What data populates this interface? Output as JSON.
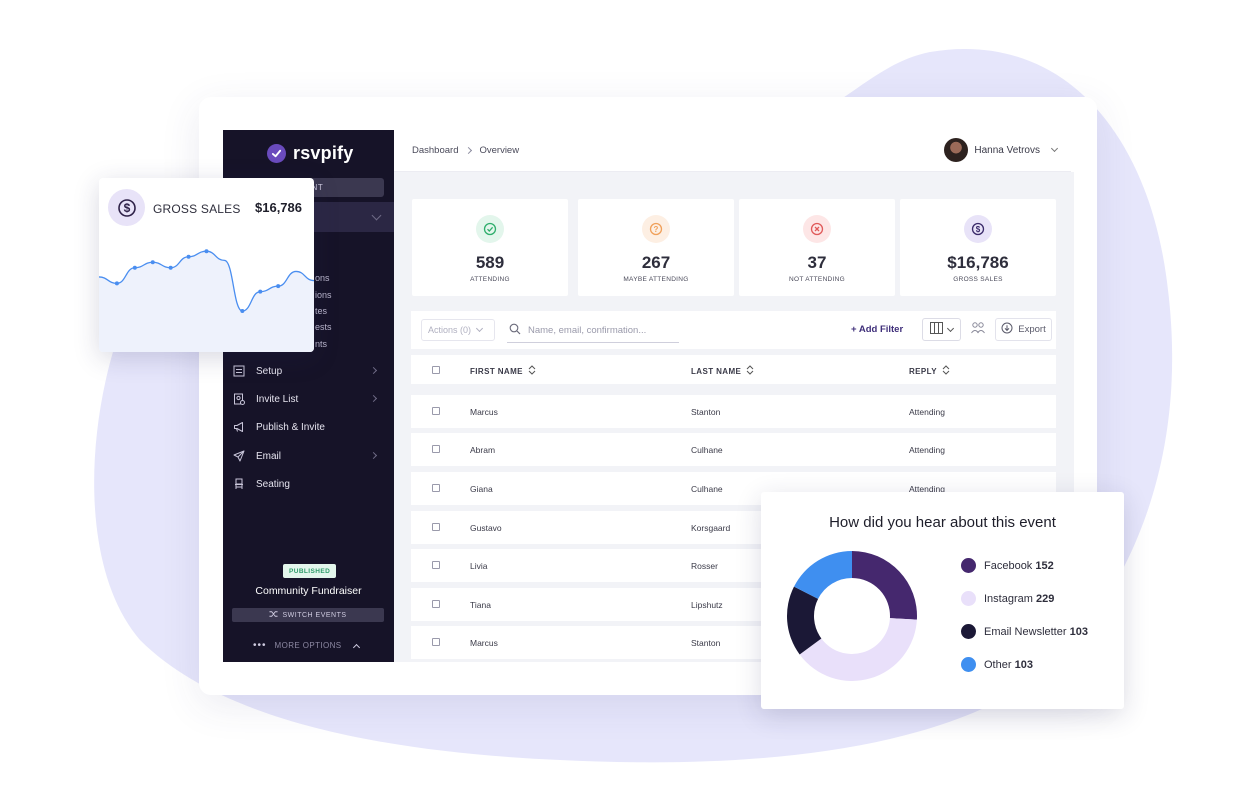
{
  "sidebar": {
    "brand": "rsvpify",
    "new_event_label": "EVENT",
    "sub_items": [
      "ons",
      "ions",
      "tes",
      "ests",
      "nts"
    ],
    "nav": [
      {
        "label": "Setup",
        "icon": "sliders-icon",
        "has_chevron": true
      },
      {
        "label": "Invite List",
        "icon": "contact-card-icon",
        "has_chevron": true
      },
      {
        "label": "Publish & Invite",
        "icon": "megaphone-icon",
        "has_chevron": false
      },
      {
        "label": "Email",
        "icon": "paper-plane-icon",
        "has_chevron": true
      },
      {
        "label": "Seating",
        "icon": "chair-icon",
        "has_chevron": false
      }
    ],
    "status_badge": "PUBLISHED",
    "event_name": "Community Fundraiser",
    "switch_events_label": "SWITCH EVENTS",
    "more_options_label": "MORE OPTIONS"
  },
  "header": {
    "breadcrumb": [
      "Dashboard",
      "Overview"
    ],
    "user_name": "Hanna Vetrovs"
  },
  "stats": [
    {
      "value": "589",
      "label": "ATTENDING",
      "icon": "check-circle-icon",
      "color": "#2fae6c",
      "bg": "#e3f6ec"
    },
    {
      "value": "267",
      "label": "MAYBE ATTENDING",
      "icon": "question-circle-icon",
      "color": "#f0a05a",
      "bg": "#fdefe3"
    },
    {
      "value": "37",
      "label": "NOT ATTENDING",
      "icon": "x-circle-icon",
      "color": "#e05a5a",
      "bg": "#fde6e6"
    },
    {
      "value": "$16,786",
      "label": "GROSS SALES",
      "icon": "dollar-circle-icon",
      "color": "#3a2a6a",
      "bg": "#e8e3f8"
    }
  ],
  "toolbar": {
    "actions_label": "Actions (0)",
    "search_placeholder": "Name, email, confirmation...",
    "add_filter_label": "+ Add Filter",
    "export_label": "Export"
  },
  "table": {
    "columns": [
      "FIRST NAME",
      "LAST NAME",
      "REPLY"
    ],
    "rows": [
      [
        "Marcus",
        "Stanton",
        "Attending"
      ],
      [
        "Abram",
        "Culhane",
        "Attending"
      ],
      [
        "Giana",
        "Culhane",
        "Attending"
      ],
      [
        "Gustavo",
        "Korsgaard",
        ""
      ],
      [
        "Livia",
        "Rosser",
        ""
      ],
      [
        "Tiana",
        "Lipshutz",
        ""
      ],
      [
        "Marcus",
        "Stanton",
        ""
      ]
    ]
  },
  "sales_card": {
    "label": "GROSS SALES",
    "value": "$16,786",
    "trend": [
      0.62,
      0.55,
      0.72,
      0.78,
      0.72,
      0.84,
      0.9,
      0.8,
      0.25,
      0.46,
      0.52,
      0.68,
      0.58
    ],
    "line_color": "#4a8ef0"
  },
  "donut": {
    "title": "How did you hear about this event",
    "segments": [
      {
        "label": "Facebook",
        "value": 152,
        "color": "#45286e"
      },
      {
        "label": "Instagram",
        "value": 229,
        "color": "#e9e0fa"
      },
      {
        "label": "Email Newsletter",
        "value": 103,
        "color": "#1b1836"
      },
      {
        "label": "Other",
        "value": 103,
        "color": "#3f8ff0"
      }
    ]
  }
}
